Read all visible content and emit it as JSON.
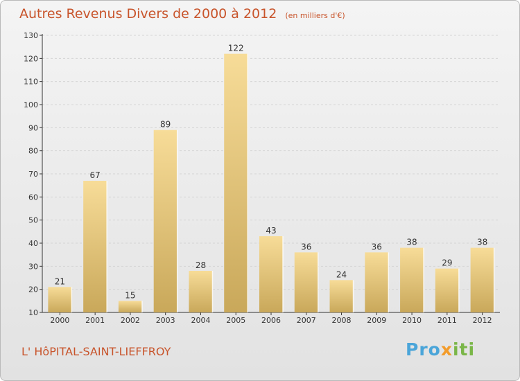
{
  "header": {
    "title": "Autres Revenus Divers de 2000 à 2012",
    "unit": "(en milliers d'€)"
  },
  "footer": {
    "commune": "L' HôPITAL-SAINT-LIEFFROY",
    "brand_part1": "Pro",
    "brand_part2": "x",
    "brand_part3": "iti"
  },
  "colors": {
    "title": "#c8542b",
    "bar_light": "#f7dc98",
    "bar_dark": "#c9a85a",
    "axis": "#333333"
  },
  "chart_data": {
    "type": "bar",
    "title": "Autres Revenus Divers de 2000 à 2012",
    "subtitle": "(en milliers d'€)",
    "xlabel": "",
    "ylabel": "",
    "categories": [
      "2000",
      "2001",
      "2002",
      "2003",
      "2004",
      "2005",
      "2006",
      "2007",
      "2008",
      "2009",
      "2010",
      "2011",
      "2012"
    ],
    "values": [
      21,
      67,
      15,
      89,
      28,
      122,
      43,
      36,
      24,
      36,
      38,
      29,
      38
    ],
    "ylim": [
      10,
      130
    ],
    "yticks": [
      10,
      20,
      30,
      40,
      50,
      60,
      70,
      80,
      90,
      100,
      110,
      120,
      130
    ],
    "grid": true,
    "legend": "none"
  }
}
